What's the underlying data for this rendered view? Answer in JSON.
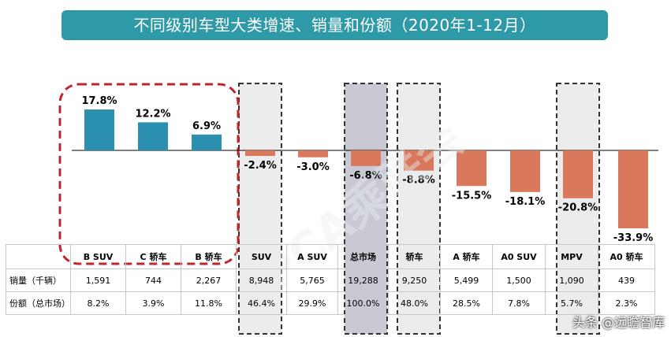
{
  "title": "不同级别车型大类增速、销量和份额（2020年1-12月）",
  "chart_data": {
    "type": "bar",
    "title": "不同级别车型大类增速、销量和份额（2020年1-12月）",
    "categories": [
      "B SUV",
      "C 轿车",
      "B 轿车",
      "SUV",
      "A SUV",
      "总市场",
      "轿车",
      "A 轿车",
      "A0 SUV",
      "MPV",
      "A0 轿车"
    ],
    "series": [
      {
        "values": [
          17.8,
          12.2,
          6.9,
          -2.4,
          -3.0,
          -6.8,
          -8.8,
          -15.5,
          -18.1,
          -20.8,
          -33.9
        ]
      }
    ],
    "value_labels": [
      "17.8%",
      "12.2%",
      "6.9%",
      "-2.4%",
      "-3.0%",
      "-6.8%",
      "-8.8%",
      "-15.5%",
      "-18.1%",
      "-20.8%",
      "-33.9%"
    ],
    "colors": {
      "positive": "#2b8fb0",
      "negative": "#d9785a",
      "highlight_light": "#ececec",
      "highlight_dark": "#c9c9d4",
      "title_bg": "#2f9aa7",
      "group_border": "#c0272d"
    },
    "highlight_light": [
      "SUV",
      "轿车",
      "MPV"
    ],
    "highlight_dark": [
      "总市场"
    ],
    "group_box": [
      "B SUV",
      "C 轿车",
      "B 轿车"
    ],
    "watermark": "CPCA乘联会"
  },
  "table": {
    "headers": [
      "",
      "B SUV",
      "C 轿车",
      "B 轿车",
      "SUV",
      "A SUV",
      "总市场",
      "轿车",
      "A 轿车",
      "A0 SUV",
      "MPV",
      "A0 轿车"
    ],
    "rows": [
      {
        "label": "销量（千辆）",
        "values": [
          "1,591",
          "744",
          "2,267",
          "8,948",
          "5,765",
          "19,288",
          "9,250",
          "5,499",
          "1,500",
          "1,090",
          "439"
        ]
      },
      {
        "label": "份额（总市场）",
        "values": [
          "8.2%",
          "3.9%",
          "11.8%",
          "46.4%",
          "29.9%",
          "100.0%",
          "48.0%",
          "28.5%",
          "7.8%",
          "5.7%",
          "2.3%"
        ]
      }
    ]
  },
  "source_watermark": "头条 @远瞻智库"
}
